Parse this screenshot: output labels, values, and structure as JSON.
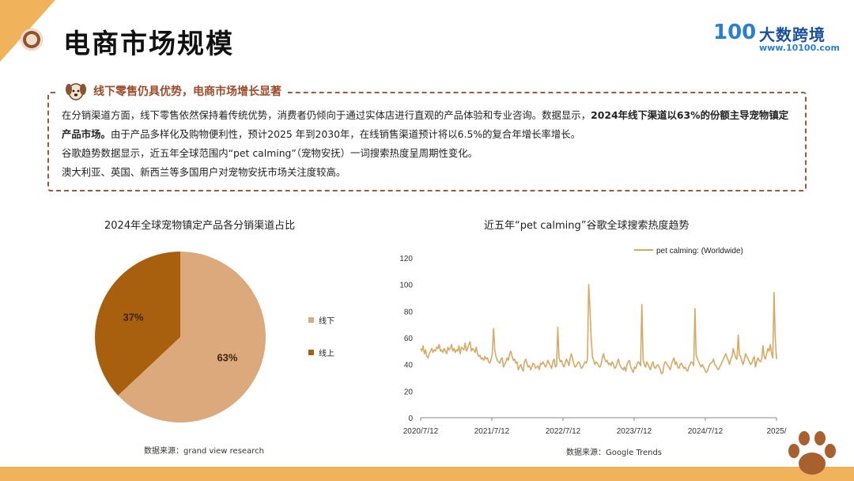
{
  "header": {
    "title": "电商市场规模",
    "logo_mark": "100",
    "logo_text": "大数跨境",
    "logo_url": "www.10100.com"
  },
  "info_box": {
    "heading": "线下零售仍具优势，电商市场增长显著",
    "p1_a": "在分销渠道方面，线下零售依然保持着传统优势，消费者仍倾向于通过实体店进行直观的产品体验和专业咨询。数据显示，",
    "p1_bold": "2024年线下渠道以63%的份额主导宠物镇定产品市场。",
    "p1_b": "由于产品多样化及购物便利性，预计2025 年到2030年，在线销售渠道预计将以6.5%的复合年增长率增长。",
    "p2": "谷歌趋势数据显示，近五年全球范围内“pet calming”（宠物安抚）一词搜索热度呈周期性变化。",
    "p3": "澳大利亚、英国、新西兰等多国用户对宠物安抚市场关注度较高。"
  },
  "pie_source": "数据来源：grand view research",
  "line_source": "数据来源：Google Trends",
  "colors": {
    "light": "#dba97c",
    "dark": "#a8600e",
    "line": "#d7a965",
    "accent": "#f1b25c",
    "brown": "#9c5a3a"
  },
  "chart_data": [
    {
      "type": "pie",
      "title": "2024年全球宠物镇定产品各分销渠道占比",
      "categories": [
        "线下",
        "线上"
      ],
      "values": [
        63,
        37
      ],
      "labels": [
        "63%",
        "37%"
      ],
      "colors": [
        "#dba97c",
        "#a8600e"
      ],
      "legend_position": "right"
    },
    {
      "type": "line",
      "title": "近五年“pet calming”谷歌全球搜索热度趋势",
      "series_name": "pet calming: (Worldwide)",
      "ylim": [
        0,
        120
      ],
      "yticks": [
        "0",
        "20",
        "40",
        "60",
        "80",
        "100",
        "120"
      ],
      "xticks": [
        "2020/7/12",
        "2021/7/12",
        "2022/7/12",
        "2023/7/12",
        "2024/7/12",
        "2025/"
      ],
      "x_start": "2020-07-12",
      "x_end": "2025-07-12",
      "legend_position": "top-right",
      "values": [
        52,
        50,
        54,
        48,
        51,
        46,
        45,
        48,
        50,
        52,
        49,
        51,
        50,
        53,
        52,
        55,
        50,
        51,
        49,
        52,
        50,
        48,
        53,
        51,
        52,
        55,
        50,
        52,
        49,
        51,
        50,
        54,
        48,
        53,
        52,
        51,
        56,
        50,
        52,
        55,
        57,
        50,
        52,
        51,
        49,
        53,
        48,
        46,
        47,
        44,
        45,
        43,
        46,
        44,
        45,
        42,
        41,
        44,
        48,
        67,
        50,
        46,
        43,
        42,
        41,
        44,
        45,
        38,
        40,
        42,
        45,
        43,
        48,
        50,
        46,
        43,
        44,
        41,
        42,
        36,
        38,
        40,
        37,
        35,
        42,
        44,
        41,
        38,
        39,
        36,
        38,
        41,
        40,
        37,
        38,
        39,
        36,
        41,
        40,
        42,
        40,
        38,
        40,
        43,
        41,
        39,
        37,
        42,
        44,
        38,
        39,
        68,
        45,
        42,
        43,
        40,
        38,
        41,
        44,
        42,
        39,
        45,
        48,
        44,
        40,
        38,
        39,
        41,
        42,
        40,
        37,
        38,
        40,
        42,
        41,
        44,
        100,
        82,
        60,
        46,
        43,
        40,
        42,
        41,
        39,
        38,
        40,
        45,
        48,
        44,
        42,
        43,
        40,
        41,
        39,
        42,
        40,
        37,
        38,
        41,
        44,
        40,
        38,
        37,
        36,
        38,
        35,
        40,
        42,
        43,
        38,
        36,
        34,
        38,
        37,
        40,
        42,
        41,
        39,
        85,
        44,
        40,
        38,
        42,
        40,
        38,
        36,
        40,
        42,
        38,
        37,
        39,
        40,
        38,
        36,
        33,
        34,
        40,
        42,
        41,
        39,
        38,
        36,
        40,
        43,
        45,
        40,
        42,
        38,
        37,
        40,
        41,
        39,
        37,
        38,
        36,
        35,
        38,
        40,
        42,
        41,
        39,
        82,
        47,
        44,
        42,
        40,
        38,
        40,
        38,
        36,
        34,
        35,
        38,
        40,
        41,
        42,
        44,
        40,
        39,
        37,
        36,
        38,
        40,
        42,
        44,
        46,
        48,
        45,
        43,
        40,
        44,
        46,
        52,
        48,
        45,
        44,
        62,
        47,
        46,
        42,
        40,
        44,
        48,
        46,
        44,
        42,
        40,
        41,
        44,
        46,
        38,
        42,
        45,
        43,
        42,
        44,
        54,
        46,
        44,
        48,
        52,
        50,
        55,
        48,
        45,
        94,
        60,
        44
      ]
    }
  ]
}
